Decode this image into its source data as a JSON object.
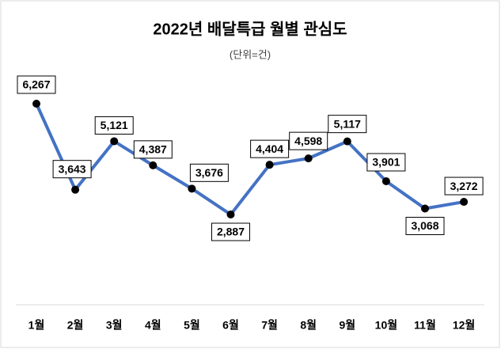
{
  "chart_data": {
    "type": "line",
    "title": "2022년 배달특급 월별 관심도",
    "subtitle": "(단위=건)",
    "categories": [
      "1월",
      "2월",
      "3월",
      "4월",
      "5월",
      "6월",
      "7월",
      "8월",
      "9월",
      "10월",
      "11월",
      "12월"
    ],
    "values": [
      6267,
      3643,
      5121,
      4387,
      3676,
      2887,
      4404,
      4598,
      5117,
      3901,
      3068,
      3272
    ],
    "value_labels": [
      "6,267",
      "3,643",
      "5,121",
      "4,387",
      "3,676",
      "2,887",
      "4,404",
      "4,598",
      "5,117",
      "3,901",
      "3,068",
      "3,272"
    ],
    "color": "#4472c4"
  }
}
